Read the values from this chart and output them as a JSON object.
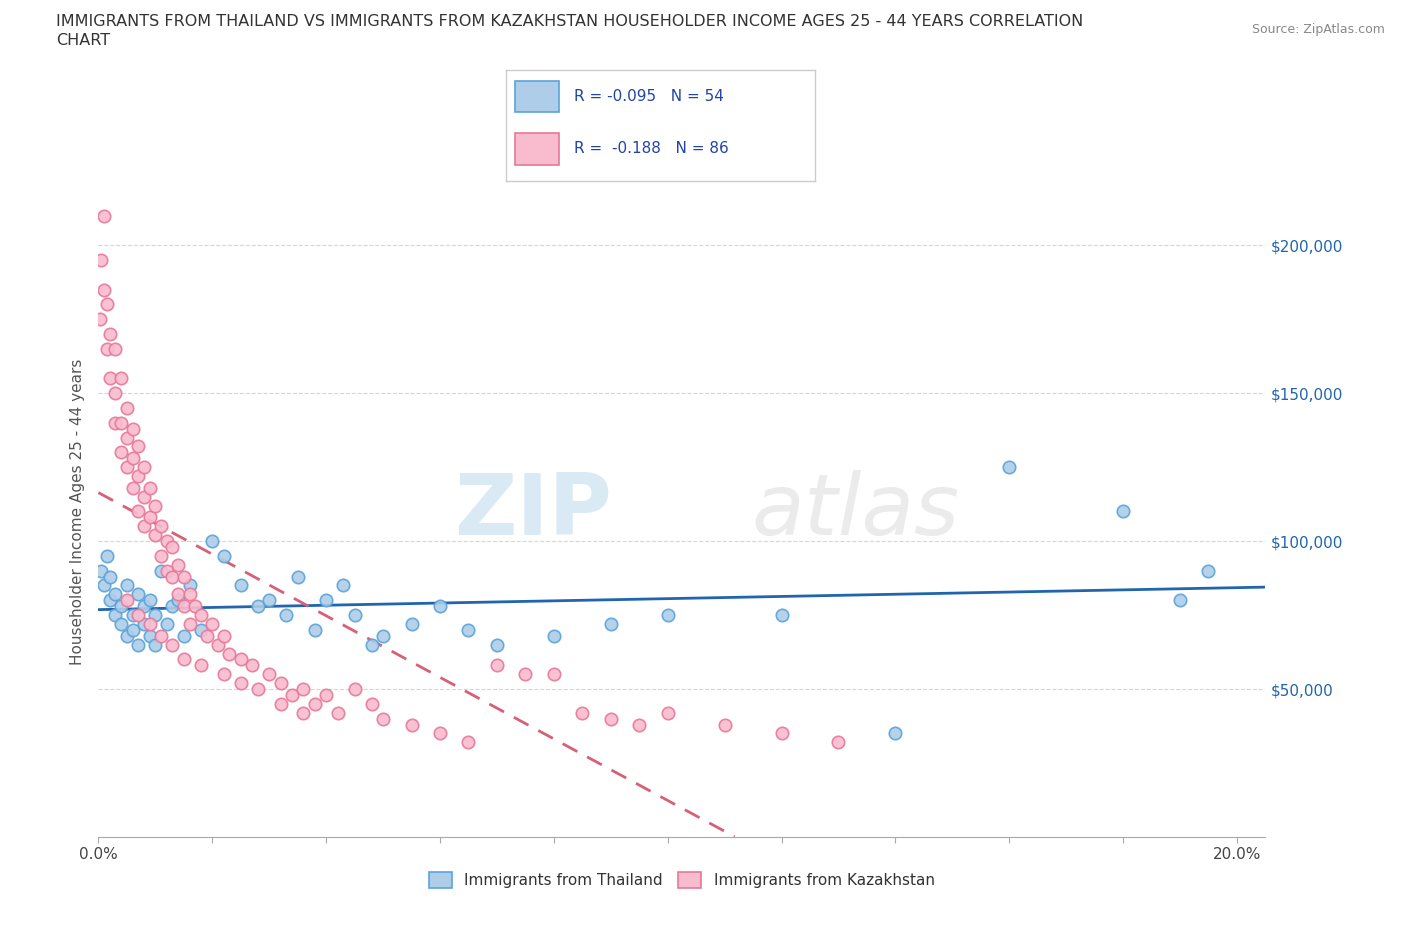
{
  "title_line1": "IMMIGRANTS FROM THAILAND VS IMMIGRANTS FROM KAZAKHSTAN HOUSEHOLDER INCOME AGES 25 - 44 YEARS CORRELATION",
  "title_line2": "CHART",
  "source": "Source: ZipAtlas.com",
  "ylabel": "Householder Income Ages 25 - 44 years",
  "xlim": [
    0.0,
    0.205
  ],
  "ylim": [
    0,
    220000
  ],
  "ytick_vals": [
    0,
    50000,
    100000,
    150000,
    200000
  ],
  "ytick_labels": [
    "",
    "$50,000",
    "$100,000",
    "$150,000",
    "$200,000"
  ],
  "thailand_color": "#aecde8",
  "thailand_edge_color": "#5ba3d9",
  "kazakhstan_color": "#f9bccf",
  "kazakhstan_edge_color": "#e8789a",
  "thailand_line_color": "#2166ac",
  "kazakhstan_line_color": "#d6607a",
  "legend_label_thailand": "Immigrants from Thailand",
  "legend_label_kazakhstan": "Immigrants from Kazakhstan",
  "watermark_zip": "ZIP",
  "watermark_atlas": "atlas",
  "background_color": "#ffffff",
  "grid_color": "#cccccc",
  "thailand_x": [
    0.0005,
    0.001,
    0.0015,
    0.002,
    0.002,
    0.003,
    0.003,
    0.004,
    0.004,
    0.005,
    0.005,
    0.006,
    0.006,
    0.007,
    0.007,
    0.008,
    0.008,
    0.009,
    0.009,
    0.01,
    0.01,
    0.011,
    0.012,
    0.013,
    0.014,
    0.015,
    0.016,
    0.018,
    0.02,
    0.022,
    0.025,
    0.028,
    0.03,
    0.033,
    0.035,
    0.038,
    0.04,
    0.043,
    0.045,
    0.048,
    0.05,
    0.055,
    0.06,
    0.065,
    0.07,
    0.08,
    0.09,
    0.1,
    0.12,
    0.14,
    0.16,
    0.18,
    0.19,
    0.195
  ],
  "thailand_y": [
    90000,
    85000,
    95000,
    80000,
    88000,
    82000,
    75000,
    78000,
    72000,
    85000,
    68000,
    75000,
    70000,
    82000,
    65000,
    78000,
    72000,
    68000,
    80000,
    75000,
    65000,
    90000,
    72000,
    78000,
    80000,
    68000,
    85000,
    70000,
    100000,
    95000,
    85000,
    78000,
    80000,
    75000,
    88000,
    70000,
    80000,
    85000,
    75000,
    65000,
    68000,
    72000,
    78000,
    70000,
    65000,
    68000,
    72000,
    75000,
    75000,
    35000,
    125000,
    110000,
    80000,
    90000
  ],
  "kazakhstan_x": [
    0.0003,
    0.0005,
    0.001,
    0.001,
    0.0015,
    0.0015,
    0.002,
    0.002,
    0.003,
    0.003,
    0.003,
    0.004,
    0.004,
    0.004,
    0.005,
    0.005,
    0.005,
    0.006,
    0.006,
    0.006,
    0.007,
    0.007,
    0.007,
    0.008,
    0.008,
    0.008,
    0.009,
    0.009,
    0.01,
    0.01,
    0.011,
    0.011,
    0.012,
    0.012,
    0.013,
    0.013,
    0.014,
    0.014,
    0.015,
    0.015,
    0.016,
    0.016,
    0.017,
    0.018,
    0.019,
    0.02,
    0.021,
    0.022,
    0.023,
    0.025,
    0.027,
    0.03,
    0.032,
    0.034,
    0.036,
    0.038,
    0.04,
    0.042,
    0.045,
    0.048,
    0.05,
    0.055,
    0.06,
    0.065,
    0.07,
    0.075,
    0.08,
    0.085,
    0.09,
    0.095,
    0.1,
    0.11,
    0.12,
    0.13,
    0.005,
    0.007,
    0.009,
    0.011,
    0.013,
    0.015,
    0.018,
    0.022,
    0.025,
    0.028,
    0.032,
    0.036
  ],
  "kazakhstan_y": [
    175000,
    195000,
    210000,
    185000,
    180000,
    165000,
    170000,
    155000,
    165000,
    150000,
    140000,
    155000,
    140000,
    130000,
    145000,
    135000,
    125000,
    138000,
    128000,
    118000,
    132000,
    122000,
    110000,
    125000,
    115000,
    105000,
    118000,
    108000,
    112000,
    102000,
    105000,
    95000,
    100000,
    90000,
    98000,
    88000,
    92000,
    82000,
    88000,
    78000,
    82000,
    72000,
    78000,
    75000,
    68000,
    72000,
    65000,
    68000,
    62000,
    60000,
    58000,
    55000,
    52000,
    48000,
    50000,
    45000,
    48000,
    42000,
    50000,
    45000,
    40000,
    38000,
    35000,
    32000,
    58000,
    55000,
    55000,
    42000,
    40000,
    38000,
    42000,
    38000,
    35000,
    32000,
    80000,
    75000,
    72000,
    68000,
    65000,
    60000,
    58000,
    55000,
    52000,
    50000,
    45000,
    42000
  ]
}
